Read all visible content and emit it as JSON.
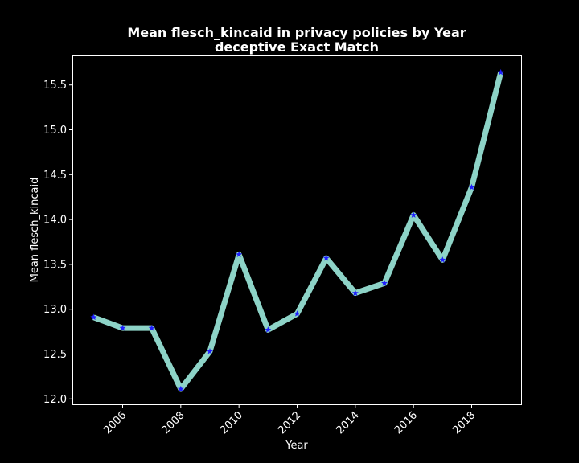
{
  "chart_data": {
    "type": "line",
    "title_line1": "Mean flesch_kincaid in privacy policies by Year",
    "title_line2": "deceptive Exact Match",
    "xlabel": "Year",
    "ylabel": "Mean flesch_kincaid",
    "x": [
      2005,
      2006,
      2007,
      2008,
      2009,
      2010,
      2011,
      2012,
      2013,
      2014,
      2015,
      2016,
      2017,
      2018,
      2019
    ],
    "series": [
      {
        "values": [
          12.91,
          12.79,
          12.79,
          12.11,
          12.53,
          13.61,
          12.77,
          12.95,
          13.57,
          13.18,
          13.29,
          14.05,
          13.55,
          14.36,
          15.64
        ]
      }
    ],
    "xlim": [
      2004.3,
      2019.7
    ],
    "ylim": [
      11.94,
      15.82
    ],
    "xticks": [
      2006,
      2008,
      2010,
      2012,
      2014,
      2016,
      2018
    ],
    "yticks": [
      12.0,
      12.5,
      13.0,
      13.5,
      14.0,
      14.5,
      15.0,
      15.5
    ],
    "ytick_labels": [
      "12.0",
      "12.5",
      "13.0",
      "13.5",
      "14.0",
      "14.5",
      "15.0",
      "15.5"
    ],
    "line_color": "#8dd3c7",
    "marker_color": "#1f1fff",
    "marker": "star",
    "background_color": "#000000",
    "grid": false,
    "legend": "none"
  }
}
